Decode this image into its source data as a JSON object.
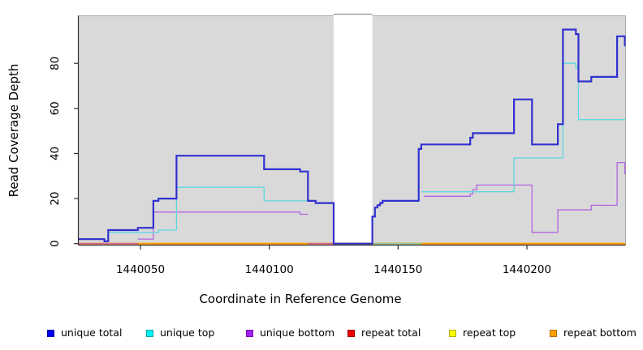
{
  "chart_data": {
    "type": "line",
    "title": "",
    "xlabel": "Coordinate in Reference Genome",
    "ylabel": "Read Coverage Depth",
    "x_range": [
      1440026,
      1440239
    ],
    "y_range": [
      0,
      101
    ],
    "grid": false,
    "plot_bg": "#d9d9d9",
    "gap_region": {
      "start": 1440125,
      "end": 1440140,
      "fill": "#ffffff",
      "top_line": "#8f8f8f"
    },
    "x_ticks": [
      1440050,
      1440100,
      1440150,
      1440200
    ],
    "x_tick_labels": [
      "1440050",
      "1440100",
      "1440150",
      "1440200"
    ],
    "y_ticks": [
      0,
      20,
      40,
      60,
      80
    ],
    "y_tick_labels": [
      "0",
      "20",
      "40",
      "60",
      "80"
    ],
    "baseline_overlays": [
      {
        "name": "unique-bottom-at-zero-left",
        "color": "#d4699b",
        "start": 1440026,
        "end": 1440049
      },
      {
        "name": "unique-bottom-at-zero-mid",
        "color": "#d4699b",
        "start": 1440115,
        "end": 1440125
      },
      {
        "name": "unique-top-at-zero",
        "color": "#86cfa5",
        "start": 1440140,
        "end": 1440159
      }
    ],
    "series": [
      {
        "name": "repeat bottom",
        "color": "#ff9c00",
        "width": 2,
        "segments": [
          {
            "steps": [
              [
                1440026,
                0
              ]
            ],
            "end": 1440239
          }
        ]
      },
      {
        "name": "repeat top",
        "color": "#ffff00",
        "width": 1.2,
        "segments": [
          {
            "steps": [
              [
                1440026,
                0
              ]
            ],
            "end": 1440239
          }
        ]
      },
      {
        "name": "repeat total",
        "color": "#ee0000",
        "width": 1.2,
        "segments": [
          {
            "steps": [
              [
                1440026,
                0
              ]
            ],
            "end": 1440239
          }
        ]
      },
      {
        "name": "unique bottom",
        "color": "#b366df",
        "width": 1.3,
        "segments": [
          {
            "steps": [
              [
                1440049,
                2
              ],
              [
                1440055,
                14
              ],
              [
                1440112,
                13
              ]
            ],
            "end": 1440115
          },
          {
            "steps": [
              [
                1440160,
                21
              ],
              [
                1440178,
                22
              ],
              [
                1440179,
                24
              ],
              [
                1440180.5,
                26
              ],
              [
                1440202,
                5
              ],
              [
                1440212,
                15
              ],
              [
                1440225,
                17
              ],
              [
                1440235,
                36
              ],
              [
                1440238,
                31
              ]
            ],
            "end": 1440239
          }
        ]
      },
      {
        "name": "unique top",
        "color": "#5cd8e0",
        "width": 1.3,
        "segments": [
          {
            "steps": [
              [
                1440037.5,
                5
              ],
              [
                1440057,
                6
              ],
              [
                1440064,
                25
              ],
              [
                1440098,
                19
              ],
              [
                1440118,
                18
              ]
            ],
            "end": 1440125
          },
          {
            "steps": [
              [
                1440159,
                23
              ],
              [
                1440195,
                38
              ],
              [
                1440214,
                80
              ],
              [
                1440219,
                78
              ],
              [
                1440220,
                55
              ]
            ],
            "end": 1440239
          }
        ]
      },
      {
        "name": "unique total",
        "color": "#3030d0",
        "width": 2.2,
        "segments": [
          {
            "steps": [
              [
                1440026,
                2
              ],
              [
                1440036,
                1
              ],
              [
                1440037.5,
                6
              ],
              [
                1440049,
                7
              ],
              [
                1440055,
                19
              ],
              [
                1440057,
                20
              ],
              [
                1440064,
                39
              ],
              [
                1440098,
                33
              ],
              [
                1440112,
                32
              ],
              [
                1440115,
                19
              ],
              [
                1440118,
                18
              ],
              [
                1440125,
                0
              ],
              [
                1440140,
                12
              ],
              [
                1440141,
                16
              ],
              [
                1440142,
                17
              ],
              [
                1440143,
                18
              ],
              [
                1440144,
                19
              ],
              [
                1440158,
                42
              ],
              [
                1440159,
                44
              ],
              [
                1440178,
                47
              ],
              [
                1440179,
                49
              ],
              [
                1440195,
                64
              ],
              [
                1440202,
                44
              ],
              [
                1440212,
                53
              ],
              [
                1440214,
                95
              ],
              [
                1440219,
                93
              ],
              [
                1440220,
                72
              ],
              [
                1440225,
                74
              ],
              [
                1440235,
                92
              ],
              [
                1440238,
                88
              ]
            ],
            "end": 1440239
          }
        ]
      }
    ],
    "legend": {
      "position": "bottom",
      "items": [
        {
          "label": "unique total",
          "color": "#0000ee",
          "border": "#0000a0"
        },
        {
          "label": "unique top",
          "color": "#00f2f2",
          "border": "#00a0a8"
        },
        {
          "label": "unique bottom",
          "color": "#a020f0",
          "border": "#7a10b8"
        },
        {
          "label": "repeat total",
          "color": "#ee0000",
          "border": "#990000"
        },
        {
          "label": "repeat top",
          "color": "#ffff00",
          "border": "#afaf00"
        },
        {
          "label": "repeat bottom",
          "color": "#ffa000",
          "border": "#b06e00"
        }
      ]
    }
  }
}
